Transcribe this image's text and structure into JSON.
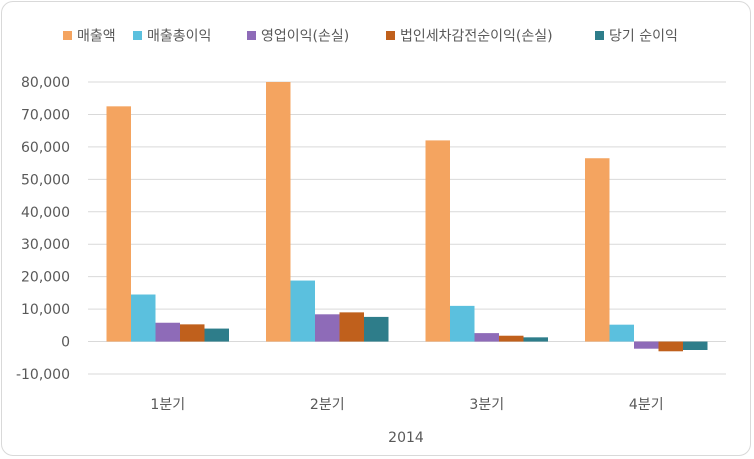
{
  "chart_data": {
    "type": "bar",
    "title": "",
    "xlabel": "2014",
    "ylabel": "",
    "ylim": [
      -10000,
      80000
    ],
    "yticks": [
      "80,000",
      "70,000",
      "60,000",
      "50,000",
      "40,000",
      "30,000",
      "20,000",
      "10,000",
      "0",
      "-10,000"
    ],
    "ytick_values": [
      80000,
      70000,
      60000,
      50000,
      40000,
      30000,
      20000,
      10000,
      0,
      -10000
    ],
    "categories": [
      "1분기",
      "2분기",
      "3분기",
      "4분기"
    ],
    "group_label": "2014",
    "grid": true,
    "legend_position": "top",
    "series": [
      {
        "name": "매출액",
        "color": "#f4a460",
        "values": [
          72500,
          80000,
          62000,
          56500
        ]
      },
      {
        "name": "매출총이익",
        "color": "#5bc0de",
        "values": [
          14500,
          18800,
          11000,
          5200
        ]
      },
      {
        "name": "영업이익(손실)",
        "color": "#8e6bb8",
        "values": [
          5800,
          8400,
          2600,
          -2200
        ]
      },
      {
        "name": "법인세차감전순이익(손실)",
        "color": "#c0601c",
        "values": [
          5300,
          9000,
          1800,
          -3000
        ]
      },
      {
        "name": "당기 순이익",
        "color": "#2e7d8a",
        "values": [
          4000,
          7600,
          1300,
          -2600
        ]
      }
    ]
  }
}
